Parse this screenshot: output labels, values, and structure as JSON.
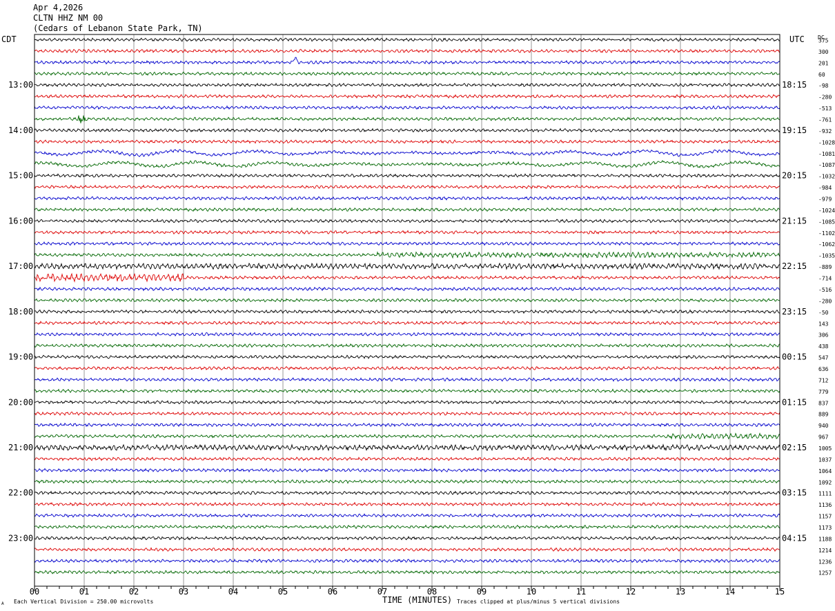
{
  "header": {
    "date": "Apr 4,2026",
    "station": "CLTN HHZ NM 00",
    "location": "(Cedars of Lebanon State Park, TN)"
  },
  "labels": {
    "left_tz": "CDT",
    "right_tz": "UTC",
    "dc": "DC",
    "xlabel": "TIME (MINUTES)",
    "scale_note": "Each Vertical Division =  250.00 microvolts",
    "clip_note": "Traces clipped at plus/minus 5 vertical divisions",
    "corner_mark": "A"
  },
  "chart_data": {
    "type": "line",
    "x_ticks": [
      "00",
      "01",
      "02",
      "03",
      "04",
      "05",
      "06",
      "07",
      "08",
      "09",
      "10",
      "11",
      "12",
      "13",
      "14",
      "15"
    ],
    "xlim": [
      0,
      15
    ],
    "left_hour_labels": [
      "13:00",
      "14:00",
      "15:00",
      "16:00",
      "17:00",
      "18:00",
      "19:00",
      "20:00",
      "21:00",
      "22:00",
      "23:00"
    ],
    "right_hour_labels": [
      "18:15",
      "19:15",
      "20:15",
      "21:15",
      "22:15",
      "23:15",
      "00:15",
      "01:15",
      "02:15",
      "03:15",
      "04:15"
    ],
    "dc_offsets": [
      "375",
      "300",
      "201",
      "60",
      "-98",
      "-280",
      "-513",
      "-761",
      "-932",
      "-1028",
      "-1081",
      "-1087",
      "-1032",
      "-984",
      "-979",
      "-1024",
      "-1085",
      "-1102",
      "-1062",
      "-1035",
      "-889",
      "-714",
      "-516",
      "-280",
      "-50",
      "143",
      "306",
      "438",
      "547",
      "636",
      "712",
      "779",
      "837",
      "889",
      "940",
      "967",
      "1005",
      "1037",
      "1064",
      "1092",
      "1111",
      "1136",
      "1157",
      "1173",
      "1188",
      "1214",
      "1236",
      "1257"
    ],
    "trace_colors": [
      "#000000",
      "#dd0000",
      "#0000cc",
      "#006600"
    ],
    "grid": "vertical lines at each minute",
    "trace_count": 48,
    "rows_per_hour": 4
  }
}
